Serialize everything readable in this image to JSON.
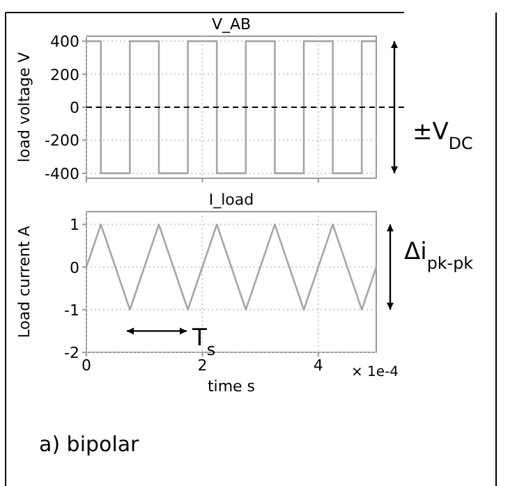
{
  "chart_data": [
    {
      "type": "step",
      "title": "V_AB",
      "ylabel": "load voltage V",
      "x": [
        0,
        0.25,
        0.75,
        1.25,
        1.75,
        2.25,
        2.75,
        3.25,
        3.75,
        4.25,
        4.75,
        5
      ],
      "series": [
        {
          "color": "#a6a6a6",
          "values": [
            400,
            -400,
            400,
            -400,
            400,
            -400,
            400,
            -400,
            400,
            -400,
            400,
            400
          ]
        }
      ],
      "xlim": [
        0,
        5
      ],
      "xticks": [
        {
          "value": 0,
          "label": null
        },
        {
          "value": 2,
          "label": null
        },
        {
          "value": 4,
          "label": null
        }
      ],
      "ylim": [
        -430,
        430
      ],
      "yticks": [
        -400,
        -200,
        0,
        200,
        400
      ],
      "tick_labels": "y",
      "grid": true,
      "ref_lines": [
        {
          "axis": "y",
          "value": 0,
          "color": "#000000",
          "line_style": "dashed"
        }
      ],
      "annotations": [
        "±V$_{DC}$"
      ]
    },
    {
      "type": "line",
      "title": "I_load",
      "ylabel": "Load current A",
      "xlabel": "time s",
      "x": [
        0,
        0.25,
        0.75,
        1.25,
        1.75,
        2.25,
        2.75,
        3.25,
        3.75,
        4.25,
        4.75,
        5
      ],
      "series": [
        {
          "color": "#a6a6a6",
          "values": [
            0,
            1,
            -1,
            1,
            -1,
            1,
            -1,
            1,
            -1,
            1,
            -1,
            0
          ]
        }
      ],
      "xlim": [
        0,
        5
      ],
      "xticks": [
        0,
        2,
        4
      ],
      "ylim": [
        -2,
        1.3
      ],
      "yticks": [
        -2,
        -1,
        0,
        1
      ],
      "grid": true,
      "annotations": [
        "Δi$_{pk-pk}$",
        "T$_{s}$",
        "× 1e-4",
        "a)  bipolar"
      ]
    }
  ]
}
